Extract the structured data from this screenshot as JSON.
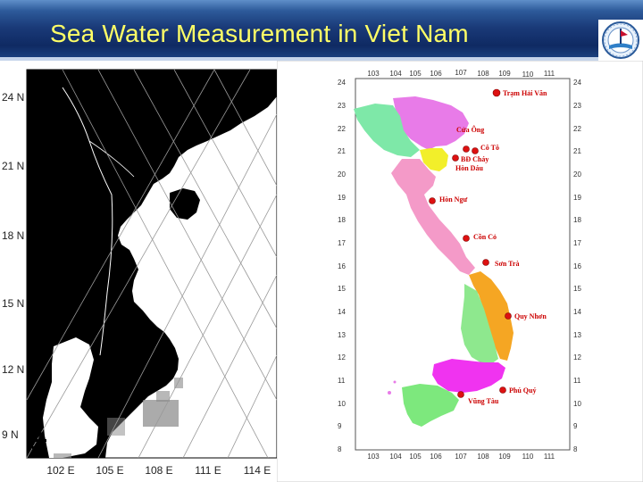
{
  "slide": {
    "title": "Sea Water Measurement in Viet Nam"
  },
  "left_map": {
    "lat_labels": [
      "24 N",
      "21 N",
      "18 N",
      "15 N",
      "12 N",
      "9 N"
    ],
    "lon_labels": [
      "102 E",
      "105 E",
      "108 E",
      "111 E",
      "114 E"
    ]
  },
  "right_map": {
    "lon_ticks": [
      "103",
      "104",
      "105",
      "106",
      "107",
      "108",
      "109",
      "110",
      "111"
    ],
    "lat_ticks": [
      "24",
      "23",
      "22",
      "21",
      "20",
      "19",
      "18",
      "17",
      "16",
      "15",
      "14",
      "13",
      "12",
      "11",
      "10",
      "9",
      "8"
    ],
    "stations": [
      {
        "name": "Trạm Hải Văn",
        "lon": 109.2,
        "lat": 23.6
      },
      {
        "name": "Cửa Ông",
        "lon": 107.7,
        "lat": 21.1
      },
      {
        "name": "Cô Tô",
        "lon": 108.0,
        "lat": 21.05
      },
      {
        "name": "BĐ Cháy",
        "lon": 107.3,
        "lat": 20.75
      },
      {
        "name": "Hòn Dáu",
        "lon": 107.3,
        "lat": 20.75
      },
      {
        "name": "Hòn Ngư",
        "lon": 105.9,
        "lat": 18.8
      },
      {
        "name": "Cồn Cỏ",
        "lon": 107.3,
        "lat": 17.15
      },
      {
        "name": "Sơn Trà",
        "lon": 108.2,
        "lat": 16.1
      },
      {
        "name": "Quy Nhơn",
        "lon": 109.2,
        "lat": 13.8
      },
      {
        "name": "Phú Quý",
        "lon": 108.9,
        "lat": 10.55
      },
      {
        "name": "Vũng Tàu",
        "lon": 107.1,
        "lat": 10.4
      }
    ]
  },
  "colors": {
    "title_text": "#ffff66",
    "station_marker": "#dd1111",
    "region_north": "#e87be8",
    "region_northeast": "#7ee8a8",
    "region_delta": "#f2ef2a",
    "region_central": "#f49ac8",
    "region_central_coast": "#f5a623",
    "region_highlands": "#8ee88e",
    "region_southeast": "#f033f0",
    "region_mekong": "#7de87d"
  }
}
